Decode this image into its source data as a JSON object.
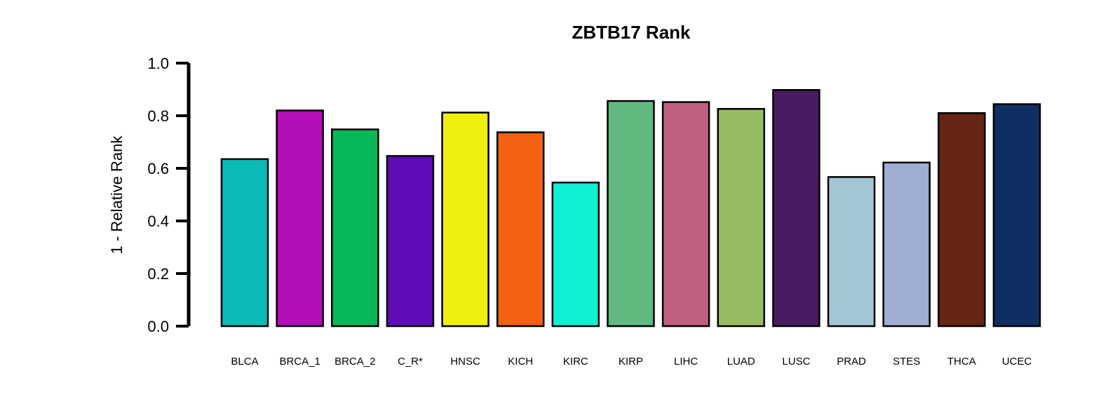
{
  "chart_data": {
    "type": "bar",
    "title": "ZBTB17 Rank",
    "xlabel": "",
    "ylabel": "1 - Relative Rank",
    "ylim": [
      0,
      1.0
    ],
    "yticks": [
      "0.0",
      "0.2",
      "0.4",
      "0.6",
      "0.8",
      "1.0"
    ],
    "grid": false,
    "legend": "none",
    "categories": [
      "BLCA",
      "BRCA_1",
      "BRCA_2",
      "C_R*",
      "HNSC",
      "KICH",
      "KIRC",
      "KIRP",
      "LIHC",
      "LUAD",
      "LUSC",
      "PRAD",
      "STES",
      "THCA",
      "UCEC"
    ],
    "values": [
      0.635,
      0.82,
      0.748,
      0.647,
      0.812,
      0.737,
      0.546,
      0.856,
      0.852,
      0.826,
      0.898,
      0.567,
      0.622,
      0.81,
      0.844
    ],
    "colors": [
      "#0BBBB6",
      "#B40DBA",
      "#08B858",
      "#5E0BB8",
      "#EFEF0D",
      "#F26011",
      "#0EEFD4",
      "#60BA80",
      "#BD617F",
      "#97BB62",
      "#471C60",
      "#A2C6D4",
      "#A0AED3",
      "#672514",
      "#0F2F64"
    ]
  }
}
